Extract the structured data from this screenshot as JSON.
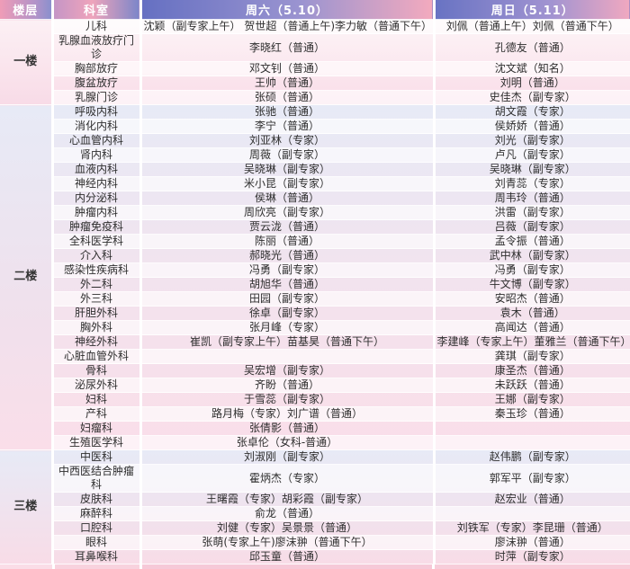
{
  "header": {
    "floor": "楼层",
    "department": "科室",
    "saturday": "周六（5.10）",
    "sunday": "周日（5.11）"
  },
  "colors": {
    "header_blue": "#6570c2",
    "header_pink": "#f3aabe",
    "section_lavender": "#e7eaf6",
    "section_pink": "#fadee9",
    "stripe_white": "rgba(255,255,255,0.62)"
  },
  "sections": [
    {
      "floor": "一楼",
      "rows": [
        {
          "department": "儿科",
          "saturday": "沈颖（副专家上午） 贺世超（普通上午)李力敏（普通下午）",
          "sunday": "刘佩（普通上午）刘佩（普通下午）"
        },
        {
          "department": "乳腺血液放疗门诊",
          "saturday": "李晓红（普通）",
          "sunday": "孔德友（普通）"
        },
        {
          "department": "胸部放疗",
          "saturday": "邓文钊（普通）",
          "sunday": "沈文斌（知名）"
        },
        {
          "department": "腹盆放疗",
          "saturday": "王帅（普通）",
          "sunday": "刘明（普通）"
        },
        {
          "department": "乳腺门诊",
          "saturday": "张硕（普通）",
          "sunday": "史佳杰（副专家）"
        }
      ]
    },
    {
      "floor": "二楼",
      "rows": [
        {
          "department": "呼吸内科",
          "saturday": "张驰（普通）",
          "sunday": "胡文霞（专家）"
        },
        {
          "department": "消化内科",
          "saturday": "李宁（普通）",
          "sunday": "侯娇娇（普通）"
        },
        {
          "department": "心血管内科",
          "saturday": "刘亚林（专家）",
          "sunday": "刘光（副专家）"
        },
        {
          "department": "肾内科",
          "saturday": "周薇（副专家）",
          "sunday": "卢凡（副专家）"
        },
        {
          "department": "血液内科",
          "saturday": "吴晓琳（副专家）",
          "sunday": "吴晓琳（副专家）"
        },
        {
          "department": "神经内科",
          "saturday": "米小昆（副专家）",
          "sunday": "刘青蕊（专家）"
        },
        {
          "department": "内分泌科",
          "saturday": "侯琳（普通）",
          "sunday": "周韦玲（普通）"
        },
        {
          "department": "肿瘤内科",
          "saturday": "周欣亮（副专家）",
          "sunday": "洪雷（副专家）"
        },
        {
          "department": "肿瘤免疫科",
          "saturday": "贾云泷（普通）",
          "sunday": "吕薇（副专家）"
        },
        {
          "department": "全科医学科",
          "saturday": "陈丽（普通）",
          "sunday": "孟令振（普通）"
        },
        {
          "department": "介入科",
          "saturday": "郝晓光（普通）",
          "sunday": "武中林（副专家）"
        },
        {
          "department": "感染性疾病科",
          "saturday": "冯勇（副专家）",
          "sunday": "冯勇（副专家）"
        },
        {
          "department": "外二科",
          "saturday": "胡旭华（普通）",
          "sunday": "牛文博（副专家）"
        },
        {
          "department": "外三科",
          "saturday": "田园（副专家）",
          "sunday": "安昭杰（普通）"
        },
        {
          "department": "肝胆外科",
          "saturday": "徐卓（副专家）",
          "sunday": "袁木（普通）"
        },
        {
          "department": "胸外科",
          "saturday": "张月峰（专家）",
          "sunday": "高闻达（普通）"
        },
        {
          "department": "神经外科",
          "saturday": "崔凯（副专家上午）苗基昊（普通下午）",
          "sunday": "李建峰（专家上午）董雅兰（普通下午）"
        },
        {
          "department": "心脏血管外科",
          "saturday": "",
          "sunday": "龚琪（副专家）"
        },
        {
          "department": "骨科",
          "saturday": "吴宏增（副专家）",
          "sunday": "康圣杰（普通）"
        },
        {
          "department": "泌尿外科",
          "saturday": "齐盼（普通）",
          "sunday": "未跃跃（普通）"
        },
        {
          "department": "妇科",
          "saturday": "于雪蕊（副专家）",
          "sunday": "王娜（副专家）"
        },
        {
          "department": "产科",
          "saturday": "路月梅（专家）刘广谱（普通）",
          "sunday": "秦玉珍（普通）"
        },
        {
          "department": "妇瘤科",
          "saturday": "张倩影（普通）",
          "sunday": ""
        },
        {
          "department": "生殖医学科",
          "saturday": "张卓伦（女科-普通）",
          "sunday": ""
        }
      ]
    },
    {
      "floor": "三楼",
      "rows": [
        {
          "department": "中医科",
          "saturday": "刘淑刚（副专家）",
          "sunday": "赵伟鹏（副专家）"
        },
        {
          "department": "中西医结合肿瘤科",
          "saturday": "霍炳杰（专家）",
          "sunday": "郭军平（副专家）"
        },
        {
          "department": "皮肤科",
          "saturday": "王曙霞（专家）胡彩霞（副专家）",
          "sunday": "赵宏业（普通）"
        },
        {
          "department": "麻醉科",
          "saturday": "俞龙（普通）",
          "sunday": ""
        },
        {
          "department": "口腔科",
          "saturday": "刘健（专家）吴景景（普通）",
          "sunday": "刘铁军（专家）李昆珊（普通）"
        },
        {
          "department": "眼科",
          "saturday": "张萌(专家上午)廖沫翀（普通下午）",
          "sunday": "廖沫翀（普通）"
        },
        {
          "department": "耳鼻喉科",
          "saturday": "邱玉童（普通）",
          "sunday": "时萍（副专家）"
        }
      ]
    }
  ]
}
